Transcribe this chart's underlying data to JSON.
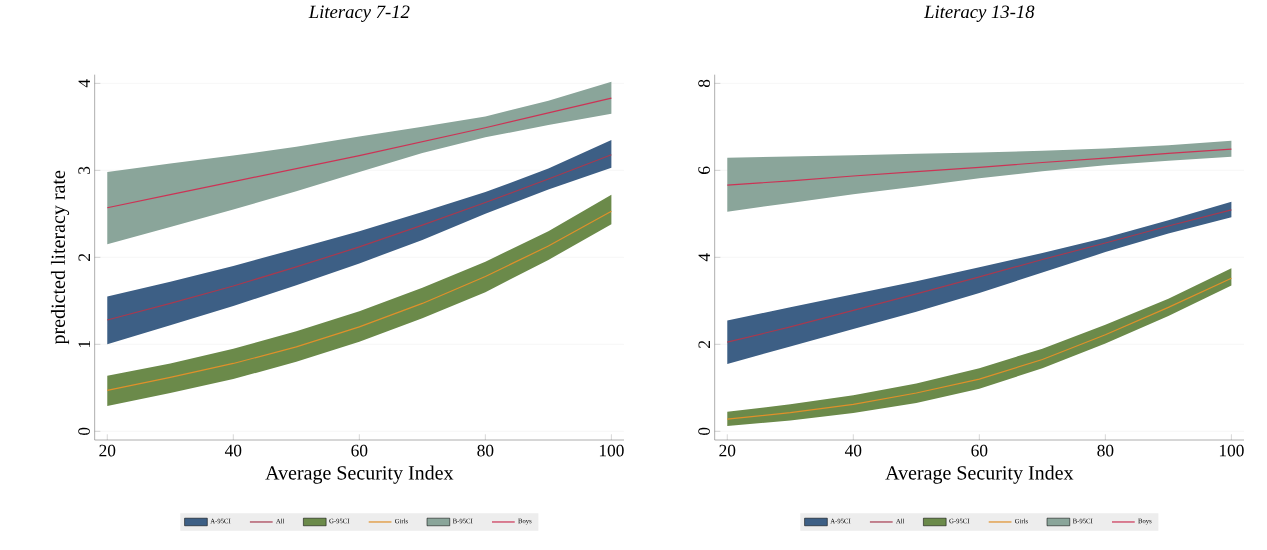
{
  "chart_data": [
    {
      "type": "line",
      "title": "Literacy 7-12",
      "xlabel": "Average Security Index",
      "ylabel": "predicted literacy rate",
      "x": [
        20,
        30,
        40,
        50,
        60,
        70,
        80,
        90,
        100
      ],
      "xlim": [
        18,
        102
      ],
      "ylim": [
        -0.1,
        4.1
      ],
      "xticks": [
        20,
        40,
        60,
        80,
        100
      ],
      "yticks": [
        0,
        1,
        2,
        3,
        4
      ],
      "grid": "y",
      "legend": "bottom",
      "series": [
        {
          "name": "A-95CI",
          "type": "area",
          "color": "#3d5f85",
          "values": [
            null,
            null,
            null,
            null,
            null,
            null,
            null,
            null,
            null
          ],
          "lower": [
            1.0,
            1.22,
            1.44,
            1.68,
            1.93,
            2.2,
            2.5,
            2.78,
            3.03
          ],
          "upper": [
            1.55,
            1.72,
            1.9,
            2.1,
            2.3,
            2.52,
            2.75,
            3.02,
            3.35
          ]
        },
        {
          "name": "All",
          "color": "#a63a50",
          "values": [
            1.28,
            1.47,
            1.67,
            1.89,
            2.12,
            2.37,
            2.63,
            2.9,
            3.18
          ]
        },
        {
          "name": "G-95CI",
          "type": "area",
          "color": "#6b8a4a",
          "values": [
            null,
            null,
            null,
            null,
            null,
            null,
            null,
            null,
            null
          ],
          "lower": [
            0.29,
            0.44,
            0.6,
            0.8,
            1.03,
            1.3,
            1.6,
            1.97,
            2.38
          ],
          "upper": [
            0.64,
            0.78,
            0.95,
            1.15,
            1.38,
            1.65,
            1.95,
            2.3,
            2.72
          ]
        },
        {
          "name": "Girls",
          "color": "#e0902a",
          "values": [
            0.47,
            0.62,
            0.78,
            0.97,
            1.2,
            1.47,
            1.78,
            2.13,
            2.53
          ]
        },
        {
          "name": "B-95CI",
          "type": "area",
          "color": "#8aa59a",
          "values": [
            null,
            null,
            null,
            null,
            null,
            null,
            null,
            null,
            null
          ],
          "lower": [
            2.15,
            2.35,
            2.55,
            2.76,
            2.98,
            3.2,
            3.38,
            3.52,
            3.65
          ],
          "upper": [
            2.98,
            3.08,
            3.17,
            3.27,
            3.39,
            3.5,
            3.62,
            3.8,
            4.02
          ]
        },
        {
          "name": "Boys",
          "color": "#cc3355",
          "values": [
            2.57,
            2.72,
            2.87,
            3.02,
            3.17,
            3.33,
            3.49,
            3.66,
            3.83
          ]
        }
      ]
    },
    {
      "type": "line",
      "title": "Literacy 13-18",
      "xlabel": "Average Security Index",
      "x": [
        20,
        30,
        40,
        50,
        60,
        70,
        80,
        90,
        100
      ],
      "xlim": [
        18,
        102
      ],
      "ylim": [
        -0.2,
        8.2
      ],
      "xticks": [
        20,
        40,
        60,
        80,
        100
      ],
      "yticks": [
        0,
        2,
        4,
        6,
        8
      ],
      "grid": "y",
      "legend": "bottom",
      "series": [
        {
          "name": "A-95CI",
          "type": "area",
          "color": "#3d5f85",
          "values": [
            null,
            null,
            null,
            null,
            null,
            null,
            null,
            null,
            null
          ],
          "lower": [
            1.55,
            1.95,
            2.35,
            2.75,
            3.18,
            3.65,
            4.12,
            4.55,
            4.92
          ],
          "upper": [
            2.55,
            2.85,
            3.15,
            3.45,
            3.77,
            4.1,
            4.45,
            4.85,
            5.28
          ]
        },
        {
          "name": "All",
          "color": "#a63a50",
          "values": [
            2.05,
            2.4,
            2.78,
            3.16,
            3.55,
            3.95,
            4.33,
            4.72,
            5.09
          ]
        },
        {
          "name": "G-95CI",
          "type": "area",
          "color": "#6b8a4a",
          "values": [
            null,
            null,
            null,
            null,
            null,
            null,
            null,
            null,
            null
          ],
          "lower": [
            0.12,
            0.25,
            0.42,
            0.65,
            0.98,
            1.45,
            2.02,
            2.65,
            3.35
          ],
          "upper": [
            0.45,
            0.62,
            0.83,
            1.1,
            1.45,
            1.9,
            2.45,
            3.05,
            3.75
          ]
        },
        {
          "name": "Girls",
          "color": "#e0902a",
          "values": [
            0.28,
            0.43,
            0.62,
            0.88,
            1.2,
            1.65,
            2.22,
            2.85,
            3.52
          ]
        },
        {
          "name": "B-95CI",
          "type": "area",
          "color": "#8aa59a",
          "values": [
            null,
            null,
            null,
            null,
            null,
            null,
            null,
            null,
            null
          ],
          "lower": [
            5.05,
            5.25,
            5.45,
            5.63,
            5.82,
            5.98,
            6.12,
            6.22,
            6.31
          ],
          "upper": [
            6.29,
            6.32,
            6.35,
            6.38,
            6.41,
            6.45,
            6.5,
            6.58,
            6.68
          ]
        },
        {
          "name": "Boys",
          "color": "#cc3355",
          "values": [
            5.66,
            5.76,
            5.87,
            5.97,
            6.07,
            6.18,
            6.28,
            6.39,
            6.49
          ]
        }
      ]
    }
  ]
}
